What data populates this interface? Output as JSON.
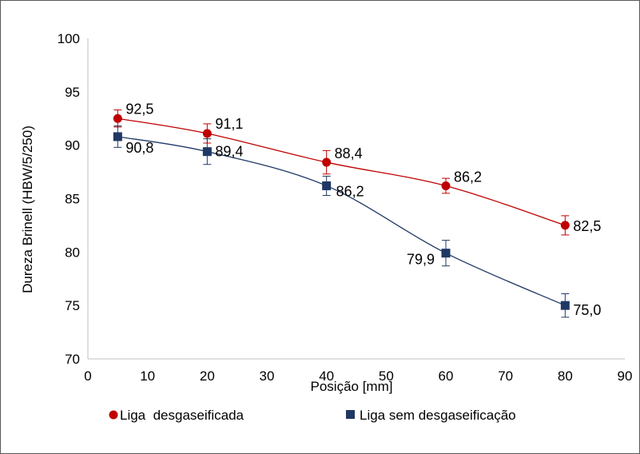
{
  "chart_data": {
    "type": "line",
    "title": "",
    "xlabel": "Posição [mm]",
    "ylabel": "Dureza Brinell (HBW/5/250)",
    "xlim": [
      0,
      90
    ],
    "ylim": [
      70,
      100
    ],
    "xticks": [
      "0",
      "10",
      "20",
      "30",
      "40",
      "50",
      "60",
      "70",
      "80",
      "90"
    ],
    "yticks": [
      "70",
      "75",
      "80",
      "85",
      "90",
      "95",
      "100"
    ],
    "grid": false,
    "legend_position": "bottom",
    "series": [
      {
        "name": "Liga  desgaseificada",
        "color": "#C00000",
        "marker": "circle",
        "x": [
          5,
          20,
          40,
          60,
          80
        ],
        "y": [
          92.5,
          91.1,
          88.4,
          86.2,
          82.5
        ],
        "error": [
          0.8,
          0.9,
          1.1,
          0.7,
          0.9
        ],
        "labels": [
          "92,5",
          "91,1",
          "88,4",
          "86,2",
          "82,5"
        ]
      },
      {
        "name": "Liga sem desgaseificação",
        "color": "#1F3864",
        "marker": "square",
        "x": [
          5,
          20,
          40,
          60,
          80
        ],
        "y": [
          90.8,
          89.4,
          86.2,
          79.9,
          75.0
        ],
        "error": [
          1.0,
          1.2,
          0.9,
          1.2,
          1.1
        ],
        "labels": [
          "90,8",
          "89,4",
          "86,2",
          "79,9",
          "75,0"
        ]
      }
    ]
  }
}
